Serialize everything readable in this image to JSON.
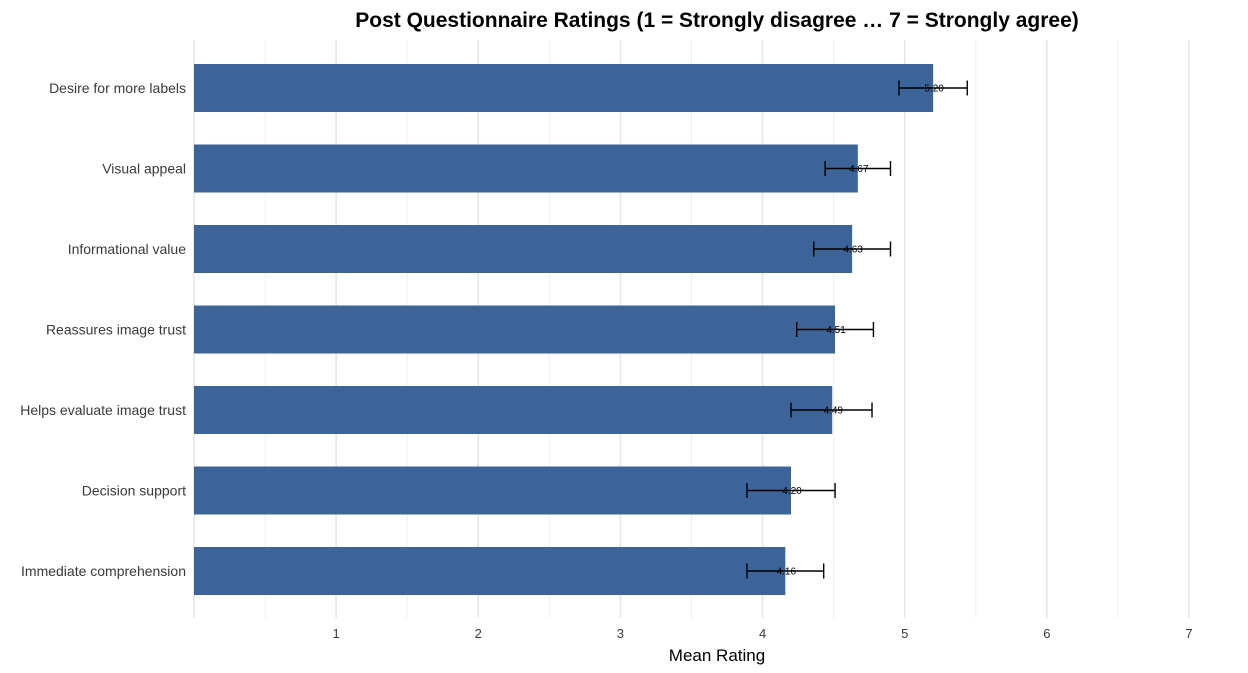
{
  "chart_data": {
    "type": "bar",
    "orientation": "horizontal",
    "title": "Post Questionnaire Ratings (1 = Strongly disagree … 7 = Strongly agree)",
    "xlabel": "Mean Rating",
    "ylabel": "",
    "xlim": [
      0,
      7
    ],
    "xticks": [
      1,
      2,
      3,
      4,
      5,
      6,
      7
    ],
    "grid": true,
    "bar_color": "#3d6498",
    "categories": [
      "Desire for more labels",
      "Visual appeal",
      "Informational value",
      "Reassures image trust",
      "Helps evaluate image trust",
      "Decision support",
      "Immediate comprehension"
    ],
    "values": [
      5.2,
      4.67,
      4.63,
      4.51,
      4.49,
      4.2,
      4.16
    ],
    "value_labels": [
      "5.20",
      "4.67",
      "4.63",
      "4.51",
      "4.49",
      "4.20",
      "4.16"
    ],
    "error_low": [
      4.96,
      4.44,
      4.36,
      4.24,
      4.2,
      3.89,
      3.89
    ],
    "error_high": [
      5.44,
      4.9,
      4.9,
      4.78,
      4.77,
      4.51,
      4.43
    ]
  }
}
